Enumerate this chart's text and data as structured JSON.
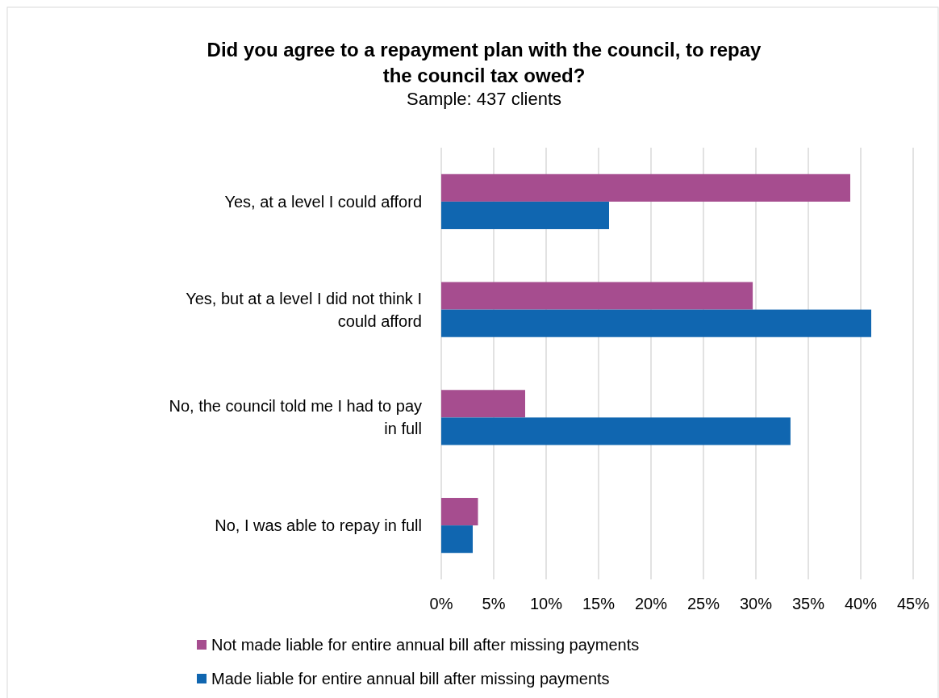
{
  "chart_data": {
    "type": "bar",
    "orientation": "horizontal",
    "title": "Did you agree to a repayment plan with the council, to repay the council tax owed?",
    "subtitle": "Sample: 437 clients",
    "categories": [
      "Yes, at a level I could afford",
      "Yes, but at a level I did not think I could afford",
      "No, the council told me I had to pay in full",
      "No, I was able to repay in full"
    ],
    "series": [
      {
        "name": "Not made liable for entire annual bill after missing payments",
        "color": "#a64d8f",
        "values": [
          39,
          29.7,
          8,
          3.5
        ]
      },
      {
        "name": "Made liable for entire annual bill after missing payments",
        "color": "#1066b0",
        "values": [
          16,
          41,
          33.3,
          3
        ]
      }
    ],
    "xlim": [
      0,
      45
    ],
    "xticks": [
      {
        "value": 0,
        "label": "0%"
      },
      {
        "value": 5,
        "label": "5%"
      },
      {
        "value": 10,
        "label": "10%"
      },
      {
        "value": 15,
        "label": "15%"
      },
      {
        "value": 20,
        "label": "20%"
      },
      {
        "value": 25,
        "label": "25%"
      },
      {
        "value": 30,
        "label": "30%"
      },
      {
        "value": 35,
        "label": "35%"
      },
      {
        "value": 40,
        "label": "40%"
      },
      {
        "value": 45,
        "label": "45%"
      }
    ],
    "grid": "x",
    "legend": "bottom"
  }
}
